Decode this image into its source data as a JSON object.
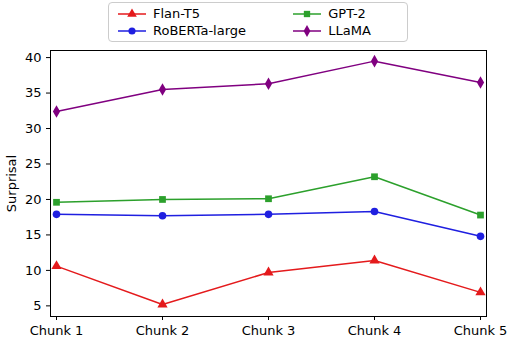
{
  "chart_data": {
    "type": "line",
    "y_label": "Surprisal",
    "categories": [
      "Chunk 1",
      "Chunk 2",
      "Chunk 3",
      "Chunk 4",
      "Chunk 5"
    ],
    "series": [
      {
        "name": "Flan-T5",
        "color": "#e41a1c",
        "marker": "triangle",
        "values": [
          10.6,
          5.2,
          9.7,
          11.4,
          6.9
        ]
      },
      {
        "name": "RoBERTa-large",
        "color": "#1f1fe0",
        "marker": "circle",
        "values": [
          17.9,
          17.7,
          17.9,
          18.3,
          14.8
        ]
      },
      {
        "name": "GPT-2",
        "color": "#2ca02c",
        "marker": "square",
        "values": [
          19.6,
          20.0,
          20.1,
          23.2,
          17.8
        ]
      },
      {
        "name": "LLaMA",
        "color": "#800080",
        "marker": "diamond",
        "values": [
          32.4,
          35.5,
          36.3,
          39.5,
          36.5
        ]
      }
    ],
    "ylim": [
      3.5,
      41
    ],
    "yticks": [
      5,
      10,
      15,
      20,
      25,
      30,
      35,
      40
    ],
    "grid": false,
    "legend": "top"
  }
}
